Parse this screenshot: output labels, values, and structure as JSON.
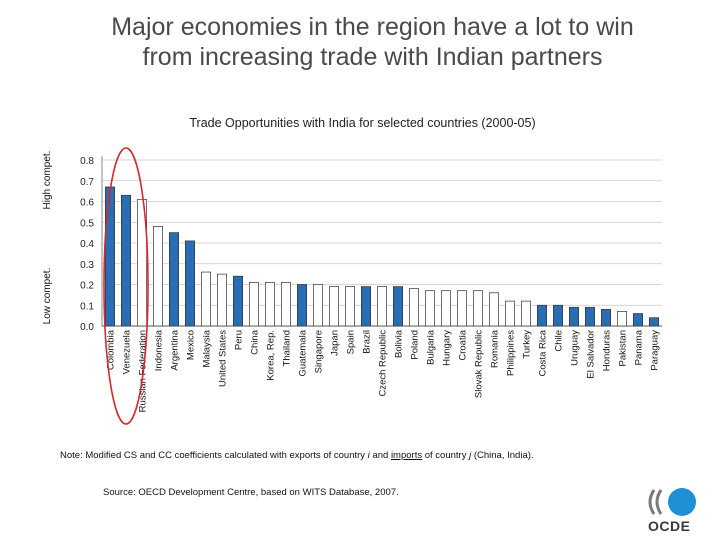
{
  "slide": {
    "title_line1": "Major economies in the region have a lot to win",
    "title_line2": "from increasing trade with Indian partners"
  },
  "note": {
    "prefix": "Note: Modified CS and CC coefficients calculated with exports of country ",
    "i": "i",
    "mid1": " and ",
    "imports": "imports",
    "mid2": " of country ",
    "j": "j",
    "suffix": " (China, India)."
  },
  "source": "Source: OECD Development Centre, based on WITS Database, 2007.",
  "logo": {
    "icon": "oecd-logo-icon",
    "text": "OCDE"
  },
  "colors": {
    "highlight_bar": "#2a6db5",
    "plain_bar": "#ffffff",
    "bar_border": "#333333",
    "circle": "#d42a2a",
    "logo_blue": "#1f8fd6",
    "logo_grey": "#7a7a7a"
  },
  "chart_data": {
    "type": "bar",
    "title": "Trade Opportunities with India for selected countries (2000-05)",
    "ylabel_high": "High compet.",
    "ylabel_low": "Low compet.",
    "ylim": [
      0,
      0.8
    ],
    "yticks": [
      "0.0",
      "0.1",
      "0.2",
      "0.3",
      "0.4",
      "0.5",
      "0.6",
      "0.7",
      "0.8"
    ],
    "grid": true,
    "categories": [
      "Colombia",
      "Venezuela",
      "Russian Federation",
      "Indonesia",
      "Argentina",
      "Mexico",
      "Malaysia",
      "United States",
      "Peru",
      "China",
      "Korea, Rep.",
      "Thailand",
      "Guatemala",
      "Singapore",
      "Japan",
      "Spain",
      "Brazil",
      "Czech Republic",
      "Bolivia",
      "Poland",
      "Bulgaria",
      "Hungary",
      "Croatia",
      "Slovak Republic",
      "Romania",
      "Philippines",
      "Turkey",
      "Costa Rica",
      "Chile",
      "Uruguay",
      "El Salvador",
      "Honduras",
      "Pakistan",
      "Panama",
      "Paraguay"
    ],
    "values": [
      0.67,
      0.63,
      0.61,
      0.48,
      0.45,
      0.41,
      0.26,
      0.25,
      0.24,
      0.21,
      0.21,
      0.21,
      0.2,
      0.2,
      0.19,
      0.19,
      0.19,
      0.19,
      0.19,
      0.18,
      0.17,
      0.17,
      0.17,
      0.17,
      0.16,
      0.12,
      0.12,
      0.1,
      0.1,
      0.09,
      0.09,
      0.08,
      0.07,
      0.06,
      0.04
    ],
    "highlighted": [
      true,
      true,
      false,
      false,
      true,
      true,
      false,
      false,
      true,
      false,
      false,
      false,
      true,
      false,
      false,
      false,
      true,
      false,
      true,
      false,
      false,
      false,
      false,
      false,
      false,
      false,
      false,
      true,
      true,
      true,
      true,
      true,
      false,
      true,
      true
    ],
    "annotation": "red circle around Colombia, Venezuela, Russian Federation"
  }
}
